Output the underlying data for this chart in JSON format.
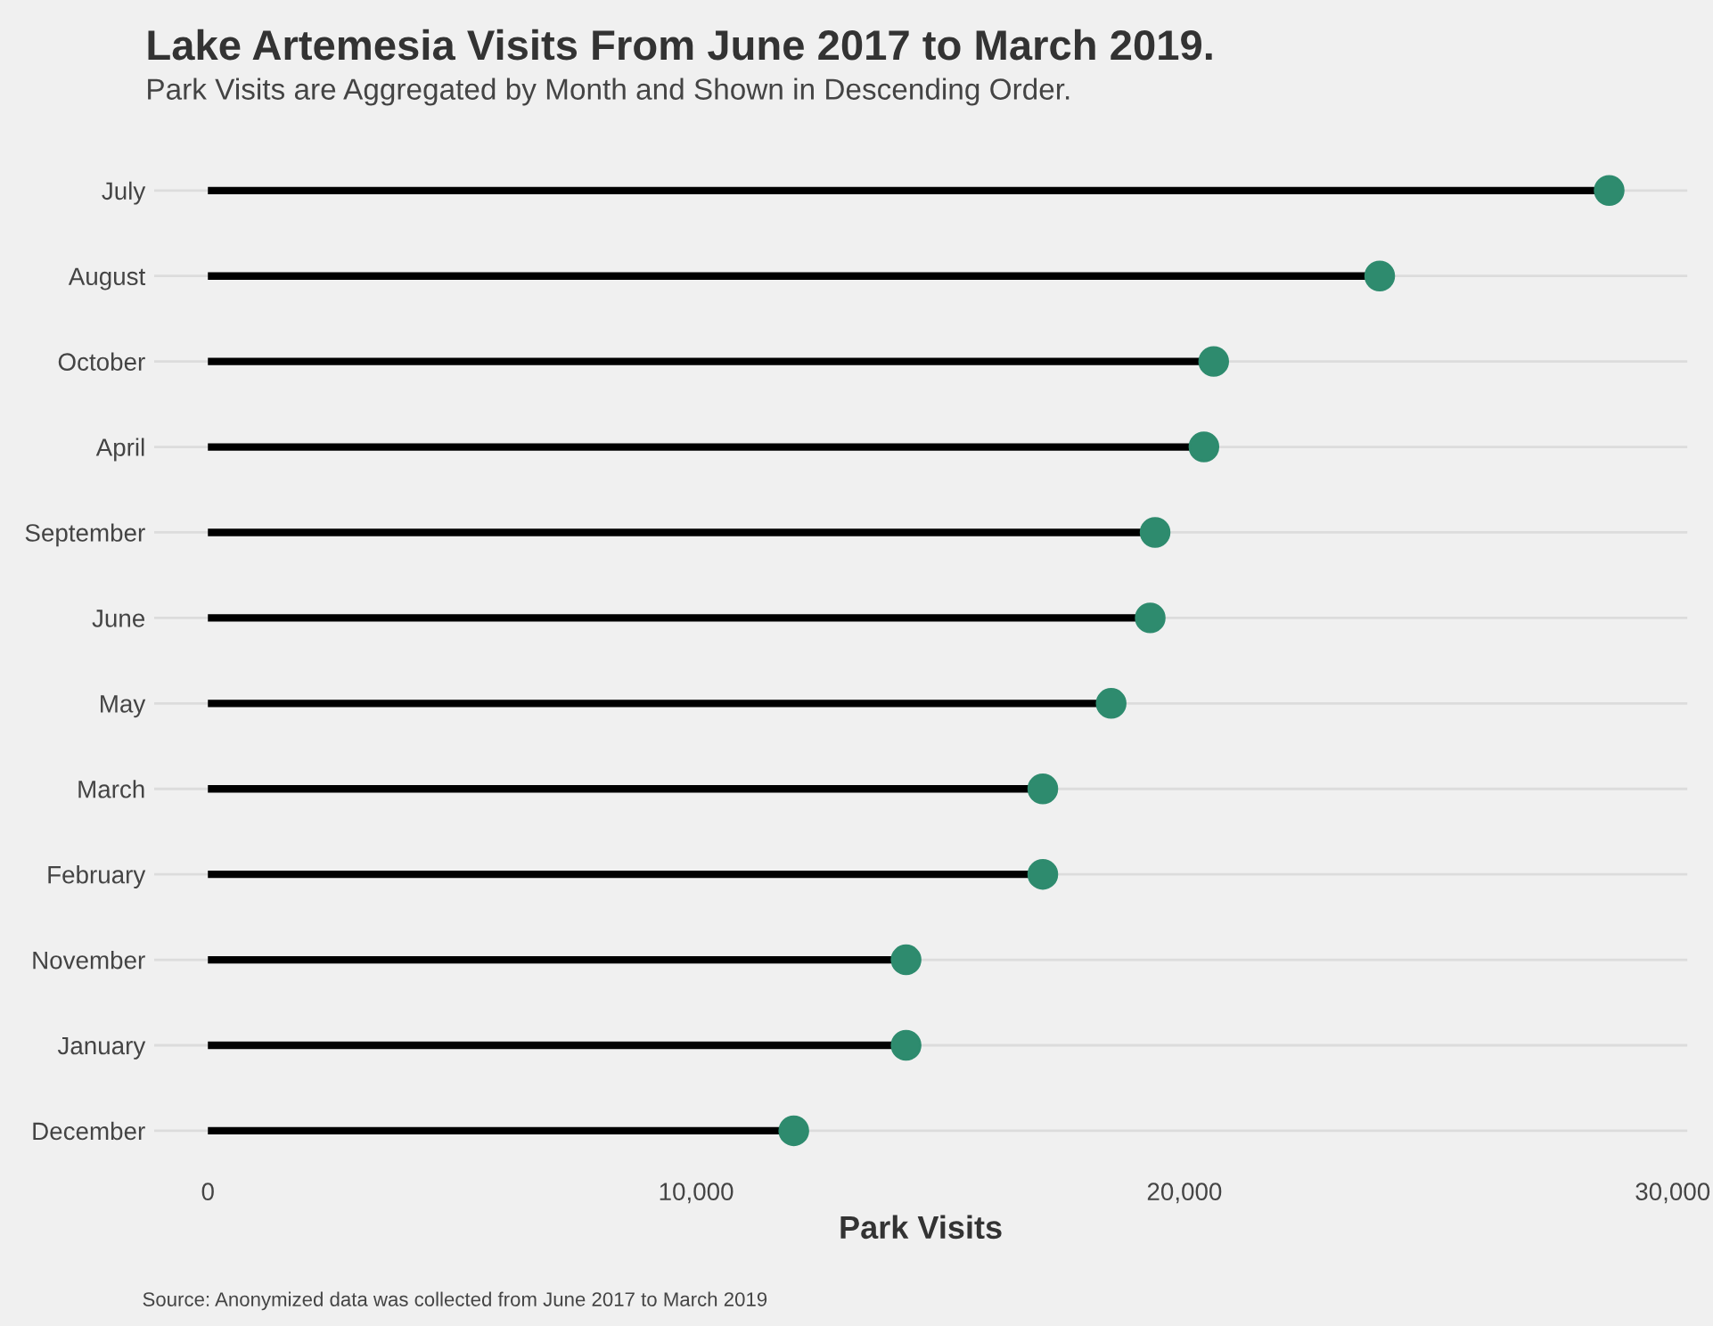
{
  "chart_data": {
    "type": "lollipop",
    "orientation": "horizontal",
    "title": "Lake Artemesia Visits From June 2017 to March 2019.",
    "subtitle": "Park Visits are Aggregated by Month and Shown in Descending Order.",
    "xlabel": "Park Visits",
    "annotations": [
      "Source: Anonymized data was collected from June 2017 to March 2019"
    ],
    "categories": [
      "July",
      "August",
      "October",
      "April",
      "September",
      "June",
      "May",
      "March",
      "February",
      "November",
      "January",
      "December"
    ],
    "values": [
      28700,
      24000,
      20600,
      20400,
      19400,
      19300,
      18500,
      17100,
      17100,
      14300,
      14300,
      12000
    ],
    "color": "#2e8b6e",
    "xlim": [
      -1100,
      30300
    ],
    "xticks": [
      0,
      {
        "value": 10000,
        "label": "10,000"
      },
      {
        "value": 20000,
        "label": "20,000"
      },
      {
        "value": 30000,
        "label": "30,000"
      }
    ],
    "grid": "y",
    "marker": "circle",
    "legend": false
  }
}
